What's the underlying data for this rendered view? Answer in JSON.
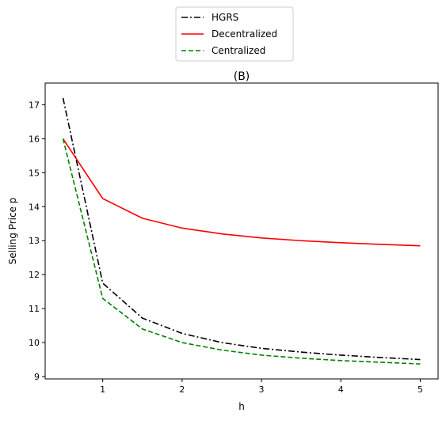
{
  "chart_data": {
    "type": "line",
    "title": "(B)",
    "xlabel": "h",
    "ylabel": "Selling Price p",
    "xlim": [
      0.275,
      5.225
    ],
    "ylim": [
      8.93,
      17.64
    ],
    "xticks": [
      1,
      2,
      3,
      4,
      5
    ],
    "yticks": [
      9,
      10,
      11,
      12,
      13,
      14,
      15,
      16,
      17
    ],
    "grid": false,
    "legend_position": "top-center, outside the axes",
    "x": [
      0.5,
      1.0,
      1.5,
      2.0,
      2.5,
      3.0,
      3.5,
      4.0,
      4.5,
      5.0
    ],
    "series": [
      {
        "name": "HGRS",
        "color": "#000000",
        "linestyle": "dashdot",
        "values": [
          17.2,
          11.75,
          10.72,
          10.27,
          10.0,
          9.83,
          9.72,
          9.63,
          9.56,
          9.5
        ]
      },
      {
        "name": "Decentralized",
        "color": "#ff0000",
        "linestyle": "solid",
        "values": [
          16.0,
          14.24,
          13.66,
          13.37,
          13.2,
          13.08,
          13.0,
          12.94,
          12.89,
          12.85
        ]
      },
      {
        "name": "Centralized",
        "color": "#008000",
        "linestyle": "dashed",
        "values": [
          16.0,
          11.3,
          10.4,
          10.0,
          9.78,
          9.63,
          9.54,
          9.47,
          9.42,
          9.37
        ]
      }
    ]
  }
}
